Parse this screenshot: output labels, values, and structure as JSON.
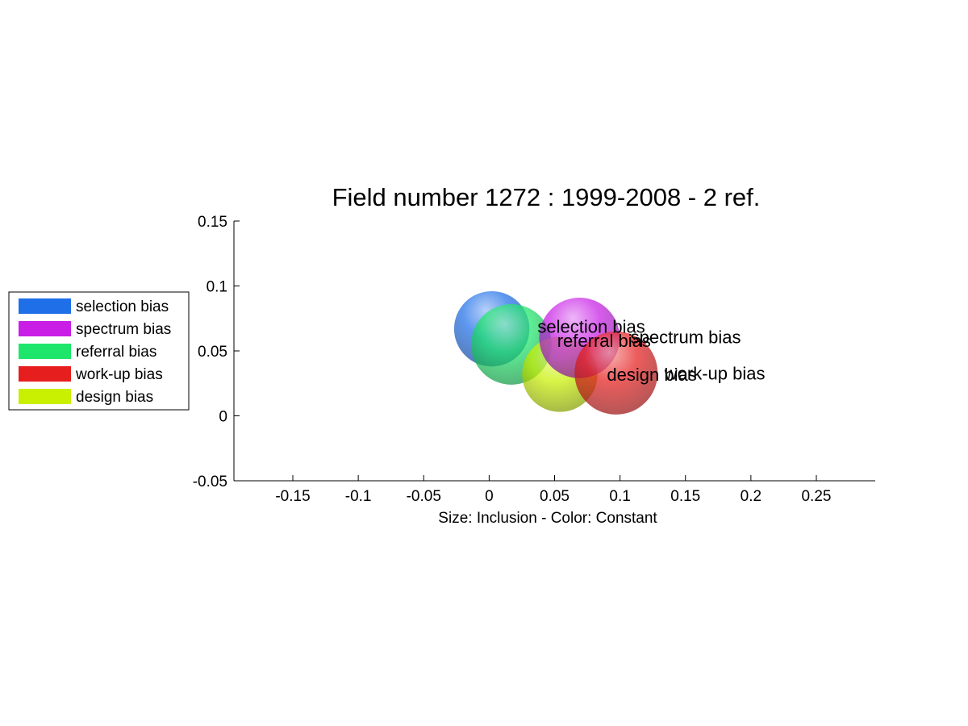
{
  "chart_data": {
    "type": "scatter",
    "title": "Field number 1272 : 1999-2008  - 2 ref.",
    "xlabel": "Size: Inclusion - Color: Constant",
    "ylabel": "",
    "xlim": [
      -0.195,
      0.295
    ],
    "ylim": [
      -0.05,
      0.15
    ],
    "xticks": [
      -0.15,
      -0.1,
      -0.05,
      0,
      0.05,
      0.1,
      0.15,
      0.2,
      0.25
    ],
    "xtick_labels": [
      "-0.15",
      "-0.1",
      "-0.05",
      "0",
      "0.05",
      "0.1",
      "0.15",
      "0.2",
      "0.25"
    ],
    "yticks": [
      -0.05,
      0,
      0.05,
      0.1,
      0.15
    ],
    "ytick_labels": [
      "-0.05",
      "0",
      "0.05",
      "0.1",
      "0.15"
    ],
    "grid": false,
    "legend_position": "left",
    "series": [
      {
        "name": "selection bias",
        "color": "#1f6fe8",
        "x": 0.002,
        "y": 0.067,
        "radius": 0.029
      },
      {
        "name": "referral bias",
        "color": "#1ee66a",
        "x": 0.017,
        "y": 0.055,
        "radius": 0.031
      },
      {
        "name": "design bias",
        "color": "#c8f000",
        "x": 0.054,
        "y": 0.032,
        "radius": 0.029
      },
      {
        "name": "spectrum bias",
        "color": "#c81ee6",
        "x": 0.069,
        "y": 0.06,
        "radius": 0.031
      },
      {
        "name": "work-up bias",
        "color": "#e61e1e",
        "x": 0.097,
        "y": 0.033,
        "radius": 0.032
      }
    ],
    "point_labels": [
      {
        "text": "selection bias",
        "x": 0.037,
        "y": 0.064
      },
      {
        "text": "referral bias",
        "x": 0.052,
        "y": 0.053
      },
      {
        "text": "spectrum bias",
        "x": 0.108,
        "y": 0.056
      },
      {
        "text": "design bias",
        "x": 0.09,
        "y": 0.027
      },
      {
        "text": "work-up bias",
        "x": 0.134,
        "y": 0.028
      }
    ],
    "legend": [
      {
        "label": "selection bias",
        "color": "#1f6fe8"
      },
      {
        "label": "spectrum bias",
        "color": "#c81ee6"
      },
      {
        "label": "referral bias",
        "color": "#1ee66a"
      },
      {
        "label": "work-up bias",
        "color": "#e61e1e"
      },
      {
        "label": "design bias",
        "color": "#c8f000"
      }
    ]
  }
}
